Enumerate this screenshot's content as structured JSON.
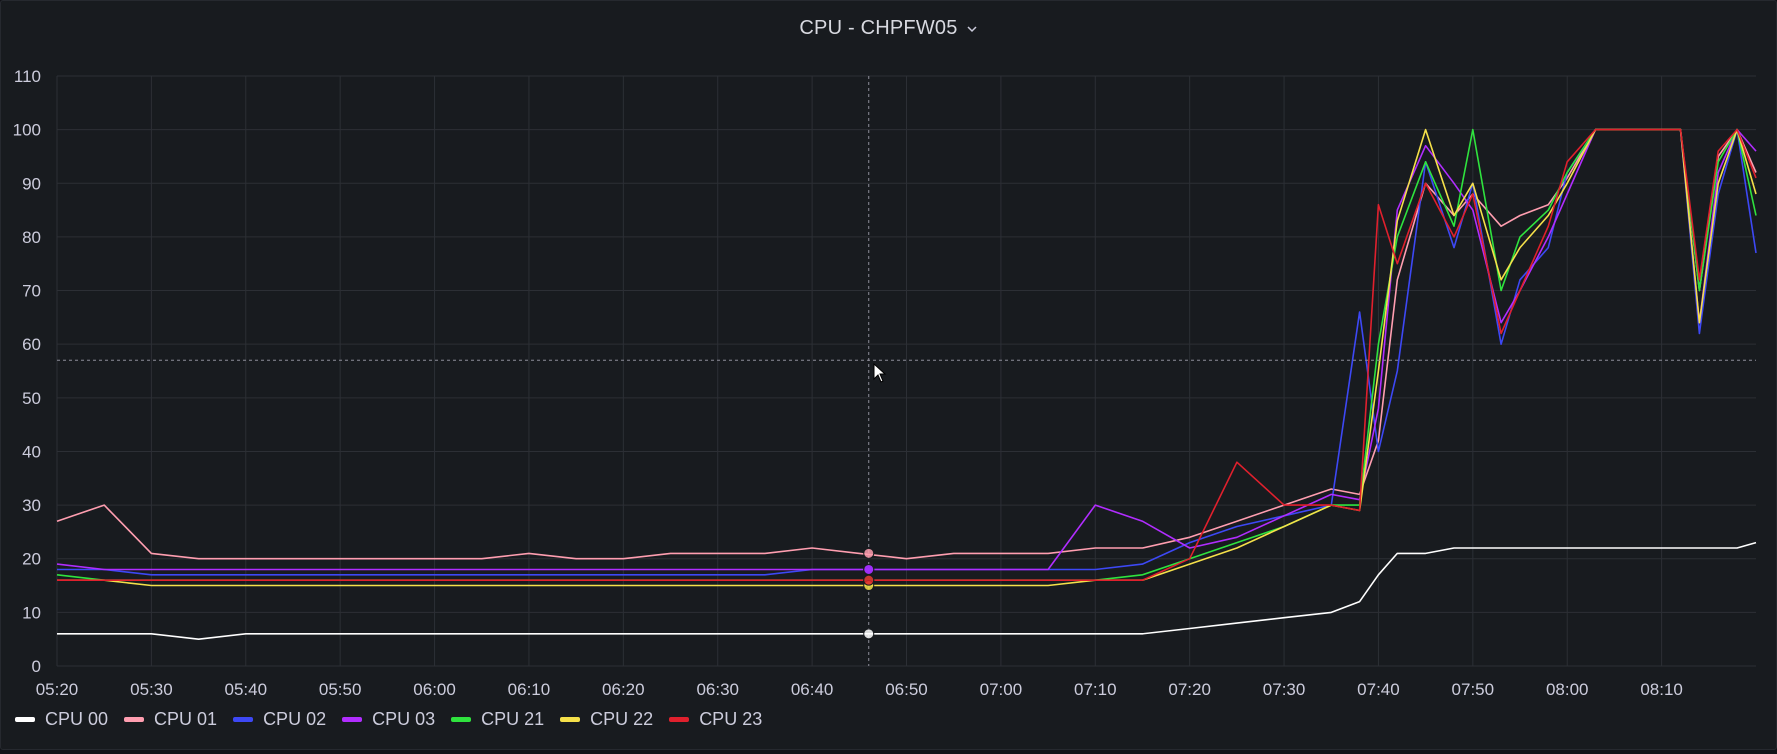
{
  "panel": {
    "title": "CPU - CHPFW05",
    "menu_icon": "chevron-down-icon"
  },
  "colors": {
    "background": "#181b1f",
    "grid": "#2c2f35",
    "text": "#ccccdc"
  },
  "chart_data": {
    "type": "line",
    "title": "CPU - CHPFW05",
    "xlabel": "",
    "ylabel": "",
    "ylim": [
      0,
      110
    ],
    "yticks": [
      0,
      10,
      20,
      30,
      40,
      50,
      60,
      70,
      80,
      90,
      100,
      110
    ],
    "xlim": [
      "05:20",
      "08:20"
    ],
    "xticks": [
      "05:20",
      "05:30",
      "05:40",
      "05:50",
      "06:00",
      "06:10",
      "06:20",
      "06:30",
      "06:40",
      "06:50",
      "07:00",
      "07:10",
      "07:20",
      "07:30",
      "07:40",
      "07:50",
      "08:00",
      "08:10"
    ],
    "grid": true,
    "legend": "bottom-left",
    "hover_time": "06:46",
    "hover_value": 57,
    "x": [
      "05:20",
      "05:25",
      "05:30",
      "05:35",
      "05:40",
      "05:45",
      "05:50",
      "05:55",
      "06:00",
      "06:05",
      "06:10",
      "06:15",
      "06:20",
      "06:25",
      "06:30",
      "06:35",
      "06:40",
      "06:45",
      "06:50",
      "06:55",
      "07:00",
      "07:05",
      "07:10",
      "07:15",
      "07:20",
      "07:25",
      "07:30",
      "07:35",
      "07:38",
      "07:40",
      "07:42",
      "07:45",
      "07:48",
      "07:50",
      "07:53",
      "07:55",
      "07:58",
      "08:00",
      "08:03",
      "08:05",
      "08:08",
      "08:10",
      "08:12",
      "08:14",
      "08:16",
      "08:18",
      "08:20"
    ],
    "series": [
      {
        "name": "CPU 00",
        "color": "#ffffff",
        "values": [
          6,
          6,
          6,
          5,
          6,
          6,
          6,
          6,
          6,
          6,
          6,
          6,
          6,
          6,
          6,
          6,
          6,
          6,
          6,
          6,
          6,
          6,
          6,
          6,
          7,
          8,
          9,
          10,
          12,
          17,
          21,
          21,
          22,
          22,
          22,
          22,
          22,
          22,
          22,
          22,
          22,
          22,
          22,
          22,
          22,
          22,
          23
        ]
      },
      {
        "name": "CPU 01",
        "color": "#ff9eb0",
        "values": [
          27,
          30,
          21,
          20,
          20,
          20,
          20,
          20,
          20,
          20,
          21,
          20,
          20,
          21,
          21,
          21,
          22,
          21,
          20,
          21,
          21,
          21,
          22,
          22,
          24,
          27,
          30,
          33,
          32,
          42,
          72,
          90,
          84,
          88,
          82,
          84,
          86,
          91,
          100,
          100,
          100,
          100,
          100,
          70,
          95,
          100,
          92
        ]
      },
      {
        "name": "CPU 02",
        "color": "#3d48f5",
        "values": [
          18,
          18,
          17,
          17,
          17,
          17,
          17,
          17,
          17,
          17,
          17,
          17,
          17,
          17,
          17,
          17,
          18,
          18,
          18,
          18,
          18,
          18,
          18,
          19,
          23,
          26,
          28,
          30,
          66,
          40,
          55,
          94,
          78,
          90,
          60,
          72,
          78,
          92,
          100,
          100,
          100,
          100,
          100,
          62,
          88,
          100,
          77
        ]
      },
      {
        "name": "CPU 03",
        "color": "#b12dff",
        "values": [
          19,
          18,
          18,
          18,
          18,
          18,
          18,
          18,
          18,
          18,
          18,
          18,
          18,
          18,
          18,
          18,
          18,
          18,
          18,
          18,
          18,
          18,
          30,
          27,
          22,
          24,
          28,
          32,
          31,
          48,
          85,
          97,
          90,
          85,
          64,
          70,
          80,
          88,
          100,
          100,
          100,
          100,
          100,
          64,
          92,
          100,
          96
        ]
      },
      {
        "name": "CPU 21",
        "color": "#2fe33e",
        "values": [
          17,
          16,
          16,
          16,
          16,
          16,
          16,
          16,
          16,
          16,
          16,
          16,
          16,
          16,
          16,
          16,
          16,
          16,
          16,
          16,
          16,
          16,
          16,
          17,
          20,
          23,
          26,
          30,
          30,
          60,
          80,
          94,
          82,
          100,
          70,
          80,
          85,
          92,
          100,
          100,
          100,
          100,
          100,
          70,
          94,
          100,
          84
        ]
      },
      {
        "name": "CPU 22",
        "color": "#f5e04a",
        "values": [
          16,
          16,
          15,
          15,
          15,
          15,
          15,
          15,
          15,
          15,
          15,
          15,
          15,
          15,
          15,
          15,
          15,
          15,
          15,
          15,
          15,
          15,
          16,
          16,
          19,
          22,
          26,
          30,
          29,
          55,
          83,
          100,
          84,
          90,
          72,
          78,
          84,
          90,
          100,
          100,
          100,
          100,
          100,
          64,
          90,
          100,
          88
        ]
      },
      {
        "name": "CPU 23",
        "color": "#e0202d",
        "values": [
          16,
          16,
          16,
          16,
          16,
          16,
          16,
          16,
          16,
          16,
          16,
          16,
          16,
          16,
          16,
          16,
          16,
          16,
          16,
          16,
          16,
          16,
          16,
          16,
          20,
          38,
          30,
          30,
          29,
          86,
          75,
          90,
          80,
          88,
          62,
          70,
          82,
          94,
          100,
          100,
          100,
          100,
          100,
          72,
          96,
          100,
          91
        ]
      }
    ]
  },
  "legend_items": [
    {
      "label": "CPU 00",
      "color": "#ffffff"
    },
    {
      "label": "CPU 01",
      "color": "#ff9eb0"
    },
    {
      "label": "CPU 02",
      "color": "#3d48f5"
    },
    {
      "label": "CPU 03",
      "color": "#b12dff"
    },
    {
      "label": "CPU 21",
      "color": "#2fe33e"
    },
    {
      "label": "CPU 22",
      "color": "#f5e04a"
    },
    {
      "label": "CPU 23",
      "color": "#e0202d"
    }
  ]
}
